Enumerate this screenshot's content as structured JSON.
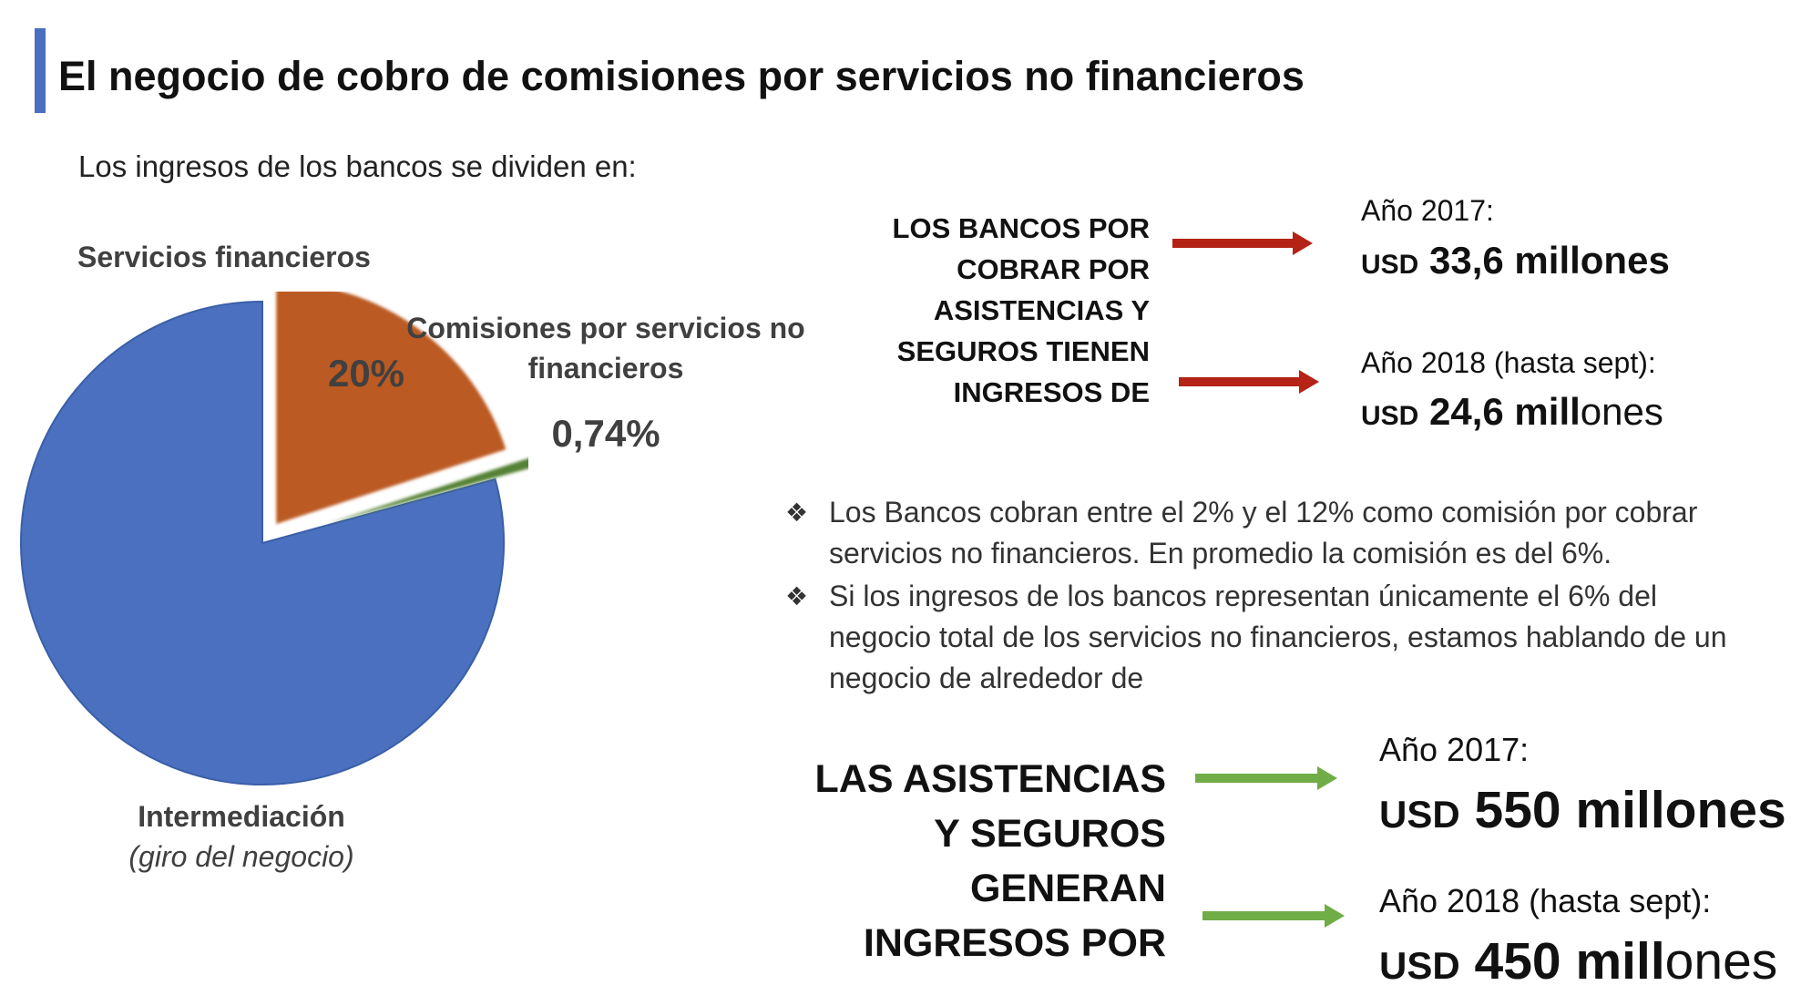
{
  "title": "El negocio de cobro de comisiones por servicios no financieros",
  "intro": "Los ingresos de los bancos se dividen en:",
  "colors": {
    "accent": "#4a6fc0",
    "intermediacion": "#4b70bf",
    "servicios_financieros": "#bb5a22",
    "comisiones": "#548235",
    "arrow_red": "#b52216",
    "arrow_green": "#70ad47"
  },
  "chart_data": {
    "type": "pie",
    "labels": [
      "Intermediación",
      "Servicios financieros",
      "Comisiones por servicios no financieros"
    ],
    "values": [
      79.26,
      20,
      0.74
    ],
    "label_texts": {
      "servicios_financieros": "Servicios financieros",
      "servicios_financieros_value": "20%",
      "comisiones": "Comisiones por servicios no financieros",
      "comisiones_value": "0,74%",
      "intermediacion": "Intermediación",
      "intermediacion_sub": "(giro del negocio)"
    }
  },
  "block_bancos": {
    "heading": "LOS BANCOS POR COBRAR POR ASISTENCIAS Y SEGUROS TIENEN INGRESOS DE",
    "items": [
      {
        "year": "Año 2017:",
        "currency": "USD",
        "amount_bold": "33,6 millones",
        "amount_light": ""
      },
      {
        "year": "Año 2018 (hasta sept):",
        "currency": "USD",
        "amount_bold": "24,6 mill",
        "amount_light": "ones"
      }
    ]
  },
  "bullets": [
    "Los Bancos cobran entre el 2% y el 12% como comisión por cobrar servicios no financieros. En promedio la comisión es del 6%.",
    "Si los ingresos de los bancos representan únicamente el 6% del negocio total de los servicios no financieros, estamos hablando de un negocio de alrededor de"
  ],
  "block_asistencias": {
    "heading": "LAS ASISTENCIAS Y SEGUROS GENERAN INGRESOS POR",
    "items": [
      {
        "year": "Año 2017:",
        "currency": "USD",
        "amount_bold": "550 millones",
        "amount_light": ""
      },
      {
        "year": "Año 2018 (hasta sept):",
        "currency": "USD",
        "amount_bold": "450 mill",
        "amount_light": "ones"
      }
    ]
  }
}
